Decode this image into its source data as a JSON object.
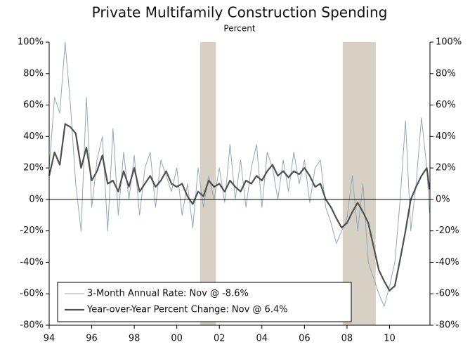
{
  "chart_data": {
    "type": "line",
    "title": "Private Multifamily Construction Spending",
    "subtitle": "Percent",
    "x": [
      1994.0,
      1994.25,
      1994.5,
      1994.75,
      1995.0,
      1995.25,
      1995.5,
      1995.75,
      1996.0,
      1996.25,
      1996.5,
      1996.75,
      1997.0,
      1997.25,
      1997.5,
      1997.75,
      1998.0,
      1998.25,
      1998.5,
      1998.75,
      1999.0,
      1999.25,
      1999.5,
      1999.75,
      2000.0,
      2000.25,
      2000.5,
      2000.75,
      2001.0,
      2001.25,
      2001.5,
      2001.75,
      2002.0,
      2002.25,
      2002.5,
      2002.75,
      2003.0,
      2003.25,
      2003.5,
      2003.75,
      2004.0,
      2004.25,
      2004.5,
      2004.75,
      2005.0,
      2005.25,
      2005.5,
      2005.75,
      2006.0,
      2006.25,
      2006.5,
      2006.75,
      2007.0,
      2007.25,
      2007.5,
      2007.75,
      2008.0,
      2008.25,
      2008.5,
      2008.75,
      2009.0,
      2009.25,
      2009.5,
      2009.75,
      2010.0,
      2010.25,
      2010.5,
      2010.75,
      2011.0,
      2011.25,
      2011.5,
      2011.75,
      2011.88
    ],
    "series": [
      {
        "name": "3-Month Annual Rate: Nov @ -8.6%",
        "color": "#8fa8ba",
        "width": 1,
        "values": [
          20,
          65,
          55,
          100,
          60,
          10,
          -20,
          65,
          -5,
          25,
          40,
          -20,
          45,
          -10,
          30,
          0,
          28,
          -10,
          20,
          30,
          -5,
          25,
          15,
          5,
          20,
          -10,
          10,
          -18,
          20,
          -5,
          15,
          0,
          20,
          -2,
          35,
          0,
          25,
          -5,
          20,
          35,
          -5,
          30,
          20,
          0,
          25,
          5,
          30,
          10,
          25,
          -2,
          20,
          25,
          -5,
          -15,
          -28,
          -20,
          -12,
          15,
          -20,
          10,
          -40,
          -50,
          -60,
          -68,
          -55,
          -40,
          0,
          50,
          -20,
          10,
          52,
          20,
          -8.6
        ]
      },
      {
        "name": "Year-over-Year Percent Change: Nov @ 6.4%",
        "color": "#505050",
        "width": 2.2,
        "values": [
          15,
          30,
          22,
          48,
          46,
          42,
          20,
          33,
          12,
          18,
          28,
          10,
          12,
          5,
          18,
          8,
          20,
          5,
          10,
          15,
          8,
          12,
          18,
          10,
          8,
          10,
          2,
          -3,
          5,
          2,
          12,
          8,
          10,
          5,
          12,
          8,
          5,
          12,
          10,
          15,
          12,
          18,
          22,
          15,
          18,
          14,
          18,
          16,
          20,
          15,
          8,
          10,
          0,
          -5,
          -12,
          -18,
          -15,
          -8,
          -2,
          -8,
          -15,
          -30,
          -45,
          -52,
          -58,
          -55,
          -38,
          -20,
          0,
          8,
          15,
          20,
          6.4
        ]
      }
    ],
    "recessions": [
      [
        2001.1,
        2001.84
      ],
      [
        2007.8,
        2009.35
      ]
    ],
    "xlim": [
      1994,
      2011.9
    ],
    "xticks": [
      {
        "value": 1994,
        "label": "94"
      },
      {
        "value": 1996,
        "label": "96"
      },
      {
        "value": 1998,
        "label": "98"
      },
      {
        "value": 2000,
        "label": "00"
      },
      {
        "value": 2002,
        "label": "02"
      },
      {
        "value": 2004,
        "label": "04"
      },
      {
        "value": 2006,
        "label": "06"
      },
      {
        "value": 2008,
        "label": "08"
      },
      {
        "value": 2010,
        "label": "10"
      }
    ],
    "ylim": [
      -80,
      100
    ],
    "yticks": [
      {
        "value": -80,
        "label": "-80%"
      },
      {
        "value": -60,
        "label": "-60%"
      },
      {
        "value": -40,
        "label": "-40%"
      },
      {
        "value": -20,
        "label": "-20%"
      },
      {
        "value": 0,
        "label": "0%"
      },
      {
        "value": 20,
        "label": "20%"
      },
      {
        "value": 40,
        "label": "40%"
      },
      {
        "value": 60,
        "label": "60%"
      },
      {
        "value": 80,
        "label": "80%"
      },
      {
        "value": 100,
        "label": "100%"
      }
    ],
    "y2lim": [
      -80,
      100
    ],
    "y2ticks": [
      {
        "value": -80,
        "label": "-80%"
      },
      {
        "value": -60,
        "label": "-60%"
      },
      {
        "value": -40,
        "label": "-40%"
      },
      {
        "value": -20,
        "label": "-20%"
      },
      {
        "value": 0,
        "label": "0%"
      },
      {
        "value": 20,
        "label": "20%"
      },
      {
        "value": 40,
        "label": "40%"
      },
      {
        "value": 60,
        "label": "60%"
      },
      {
        "value": 80,
        "label": "80%"
      },
      {
        "value": 100,
        "label": "100%"
      }
    ]
  }
}
